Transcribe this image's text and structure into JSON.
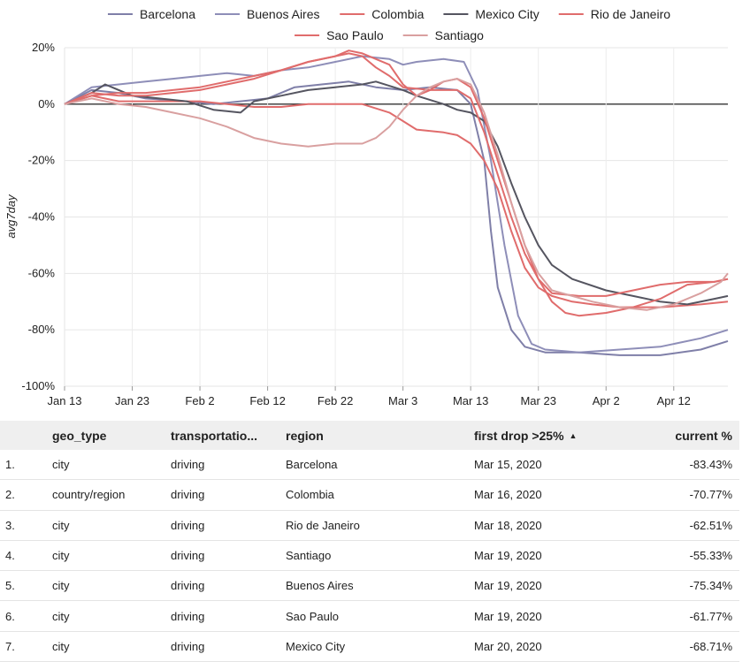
{
  "chart_data": {
    "type": "line",
    "ylabel": "avg7day",
    "ylim": [
      -100,
      20
    ],
    "yticks": [
      20,
      0,
      -20,
      -40,
      -60,
      -80,
      -100
    ],
    "ytick_labels": [
      "20%",
      "0%",
      "-20%",
      "-40%",
      "-60%",
      "-80%",
      "-100%"
    ],
    "xlim": [
      0,
      98
    ],
    "xticks": [
      0,
      10,
      20,
      30,
      40,
      50,
      60,
      70,
      80,
      90
    ],
    "xtick_labels": [
      "Jan 13",
      "Jan 23",
      "Feb 2",
      "Feb 12",
      "Feb 22",
      "Mar 3",
      "Mar 13",
      "Mar 23",
      "Apr 2",
      "Apr 12"
    ],
    "grid": true,
    "legend_position": "top",
    "series": [
      {
        "name": "Barcelona",
        "color": "#7f7fa8",
        "points": [
          [
            0,
            0
          ],
          [
            4,
            5
          ],
          [
            8,
            4
          ],
          [
            12,
            2
          ],
          [
            18,
            1
          ],
          [
            22,
            0
          ],
          [
            26,
            1
          ],
          [
            30,
            2
          ],
          [
            34,
            6
          ],
          [
            38,
            7
          ],
          [
            42,
            8
          ],
          [
            46,
            6
          ],
          [
            50,
            5
          ],
          [
            54,
            6
          ],
          [
            58,
            5
          ],
          [
            60,
            0
          ],
          [
            62,
            -20
          ],
          [
            63,
            -45
          ],
          [
            64,
            -65
          ],
          [
            66,
            -80
          ],
          [
            68,
            -86
          ],
          [
            71,
            -88
          ],
          [
            76,
            -88
          ],
          [
            82,
            -89
          ],
          [
            88,
            -89
          ],
          [
            94,
            -87
          ],
          [
            98,
            -84
          ]
        ]
      },
      {
        "name": "Buenos Aires",
        "color": "#8e8eb8",
        "points": [
          [
            0,
            0
          ],
          [
            4,
            6
          ],
          [
            8,
            7
          ],
          [
            12,
            8
          ],
          [
            16,
            9
          ],
          [
            20,
            10
          ],
          [
            24,
            11
          ],
          [
            28,
            10
          ],
          [
            32,
            12
          ],
          [
            36,
            13
          ],
          [
            40,
            15
          ],
          [
            44,
            17
          ],
          [
            48,
            16
          ],
          [
            50,
            14
          ],
          [
            52,
            15
          ],
          [
            56,
            16
          ],
          [
            59,
            15
          ],
          [
            61,
            5
          ],
          [
            63,
            -20
          ],
          [
            65,
            -50
          ],
          [
            67,
            -75
          ],
          [
            69,
            -85
          ],
          [
            71,
            -87
          ],
          [
            76,
            -88
          ],
          [
            82,
            -87
          ],
          [
            88,
            -86
          ],
          [
            94,
            -83
          ],
          [
            98,
            -80
          ]
        ]
      },
      {
        "name": "Colombia",
        "color": "#e06c6c",
        "points": [
          [
            0,
            0
          ],
          [
            4,
            3
          ],
          [
            8,
            1
          ],
          [
            14,
            1
          ],
          [
            20,
            1
          ],
          [
            24,
            0
          ],
          [
            28,
            -1
          ],
          [
            32,
            -1
          ],
          [
            36,
            0
          ],
          [
            40,
            0
          ],
          [
            44,
            0
          ],
          [
            48,
            -3
          ],
          [
            50,
            -6
          ],
          [
            52,
            -9
          ],
          [
            56,
            -10
          ],
          [
            58,
            -11
          ],
          [
            60,
            -14
          ],
          [
            62,
            -20
          ],
          [
            64,
            -30
          ],
          [
            66,
            -45
          ],
          [
            68,
            -58
          ],
          [
            70,
            -65
          ],
          [
            72,
            -68
          ],
          [
            75,
            -70
          ],
          [
            78,
            -71
          ],
          [
            82,
            -72
          ],
          [
            88,
            -72
          ],
          [
            94,
            -71
          ],
          [
            98,
            -70
          ]
        ]
      },
      {
        "name": "Mexico City",
        "color": "#555560",
        "points": [
          [
            0,
            0
          ],
          [
            4,
            4
          ],
          [
            6,
            7
          ],
          [
            10,
            3
          ],
          [
            14,
            2
          ],
          [
            18,
            1
          ],
          [
            22,
            -2
          ],
          [
            26,
            -3
          ],
          [
            28,
            1
          ],
          [
            32,
            3
          ],
          [
            36,
            5
          ],
          [
            40,
            6
          ],
          [
            44,
            7
          ],
          [
            46,
            8
          ],
          [
            50,
            5
          ],
          [
            52,
            3
          ],
          [
            56,
            0
          ],
          [
            58,
            -2
          ],
          [
            60,
            -3
          ],
          [
            62,
            -6
          ],
          [
            64,
            -15
          ],
          [
            66,
            -28
          ],
          [
            68,
            -40
          ],
          [
            70,
            -50
          ],
          [
            72,
            -57
          ],
          [
            75,
            -62
          ],
          [
            80,
            -66
          ],
          [
            84,
            -68
          ],
          [
            88,
            -70
          ],
          [
            92,
            -71
          ],
          [
            96,
            -69
          ],
          [
            98,
            -68
          ]
        ]
      },
      {
        "name": "Rio de Janeiro",
        "color": "#e06c6c",
        "points": [
          [
            0,
            0
          ],
          [
            4,
            3
          ],
          [
            8,
            4
          ],
          [
            12,
            4
          ],
          [
            16,
            5
          ],
          [
            20,
            6
          ],
          [
            24,
            8
          ],
          [
            28,
            10
          ],
          [
            32,
            12
          ],
          [
            36,
            15
          ],
          [
            40,
            17
          ],
          [
            42,
            18
          ],
          [
            44,
            17
          ],
          [
            46,
            13
          ],
          [
            48,
            10
          ],
          [
            50,
            6
          ],
          [
            54,
            5
          ],
          [
            58,
            5
          ],
          [
            60,
            2
          ],
          [
            62,
            -10
          ],
          [
            64,
            -25
          ],
          [
            66,
            -40
          ],
          [
            68,
            -53
          ],
          [
            70,
            -62
          ],
          [
            72,
            -67
          ],
          [
            76,
            -68
          ],
          [
            80,
            -68
          ],
          [
            84,
            -66
          ],
          [
            88,
            -64
          ],
          [
            92,
            -63
          ],
          [
            96,
            -63
          ],
          [
            98,
            -62
          ]
        ]
      },
      {
        "name": "Sao Paulo",
        "color": "#e06c6c",
        "points": [
          [
            0,
            0
          ],
          [
            4,
            4
          ],
          [
            8,
            3
          ],
          [
            12,
            3
          ],
          [
            16,
            4
          ],
          [
            20,
            5
          ],
          [
            24,
            7
          ],
          [
            28,
            9
          ],
          [
            32,
            12
          ],
          [
            36,
            15
          ],
          [
            40,
            17
          ],
          [
            42,
            19
          ],
          [
            44,
            18
          ],
          [
            46,
            16
          ],
          [
            48,
            14
          ],
          [
            50,
            7
          ],
          [
            52,
            3
          ],
          [
            54,
            5
          ],
          [
            56,
            8
          ],
          [
            58,
            9
          ],
          [
            60,
            6
          ],
          [
            62,
            -5
          ],
          [
            64,
            -20
          ],
          [
            66,
            -35
          ],
          [
            68,
            -50
          ],
          [
            70,
            -62
          ],
          [
            72,
            -70
          ],
          [
            74,
            -74
          ],
          [
            76,
            -75
          ],
          [
            80,
            -74
          ],
          [
            84,
            -72
          ],
          [
            88,
            -69
          ],
          [
            92,
            -64
          ],
          [
            96,
            -63
          ],
          [
            98,
            -62
          ]
        ]
      },
      {
        "name": "Santiago",
        "color": "#d9a0a0",
        "points": [
          [
            0,
            0
          ],
          [
            4,
            2
          ],
          [
            8,
            0
          ],
          [
            12,
            -1
          ],
          [
            16,
            -3
          ],
          [
            20,
            -5
          ],
          [
            24,
            -8
          ],
          [
            28,
            -12
          ],
          [
            32,
            -14
          ],
          [
            36,
            -15
          ],
          [
            40,
            -14
          ],
          [
            44,
            -14
          ],
          [
            46,
            -12
          ],
          [
            48,
            -8
          ],
          [
            50,
            -2
          ],
          [
            52,
            3
          ],
          [
            54,
            6
          ],
          [
            56,
            8
          ],
          [
            58,
            9
          ],
          [
            60,
            7
          ],
          [
            62,
            -3
          ],
          [
            64,
            -18
          ],
          [
            66,
            -35
          ],
          [
            68,
            -50
          ],
          [
            70,
            -60
          ],
          [
            72,
            -66
          ],
          [
            75,
            -68
          ],
          [
            78,
            -70
          ],
          [
            82,
            -72
          ],
          [
            86,
            -73
          ],
          [
            90,
            -71
          ],
          [
            94,
            -67
          ],
          [
            97,
            -63
          ],
          [
            98,
            -60
          ]
        ]
      }
    ]
  },
  "table": {
    "headers": {
      "index": "",
      "geo_type": "geo_type",
      "transportation": "transportatio...",
      "region": "region",
      "first_drop": "first drop >25%",
      "current": "current %"
    },
    "rows": [
      {
        "index": "1.",
        "geo_type": "city",
        "transportation": "driving",
        "region": "Barcelona",
        "first_drop": "Mar 15, 2020",
        "current": "-83.43%"
      },
      {
        "index": "2.",
        "geo_type": "country/region",
        "transportation": "driving",
        "region": "Colombia",
        "first_drop": "Mar 16, 2020",
        "current": "-70.77%"
      },
      {
        "index": "3.",
        "geo_type": "city",
        "transportation": "driving",
        "region": "Rio de Janeiro",
        "first_drop": "Mar 18, 2020",
        "current": "-62.51%"
      },
      {
        "index": "4.",
        "geo_type": "city",
        "transportation": "driving",
        "region": "Santiago",
        "first_drop": "Mar 19, 2020",
        "current": "-55.33%"
      },
      {
        "index": "5.",
        "geo_type": "city",
        "transportation": "driving",
        "region": "Buenos Aires",
        "first_drop": "Mar 19, 2020",
        "current": "-75.34%"
      },
      {
        "index": "6.",
        "geo_type": "city",
        "transportation": "driving",
        "region": "Sao Paulo",
        "first_drop": "Mar 19, 2020",
        "current": "-61.77%"
      },
      {
        "index": "7.",
        "geo_type": "city",
        "transportation": "driving",
        "region": "Mexico City",
        "first_drop": "Mar 20, 2020",
        "current": "-68.71%"
      }
    ]
  }
}
